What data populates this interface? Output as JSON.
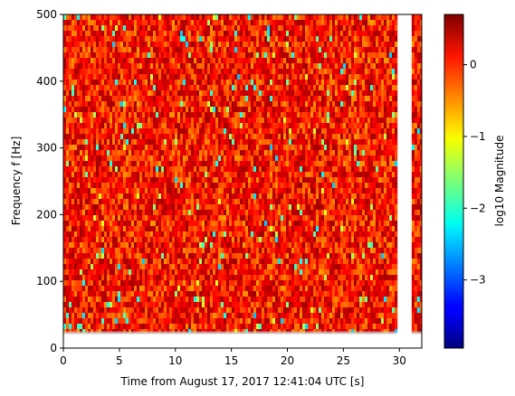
{
  "chart_data": {
    "type": "heatmap",
    "xlabel": "Time from August 17, 2017 12:41:04 UTC [s]",
    "ylabel": "Frequency f [Hz]",
    "xlim": [
      0,
      32
    ],
    "ylim": [
      0,
      500
    ],
    "xticks": [
      "0",
      "5",
      "10",
      "15",
      "20",
      "25",
      "30"
    ],
    "yticks": [
      "0",
      "100",
      "200",
      "300",
      "400",
      "500"
    ],
    "data_freq_min": 23,
    "segments": [
      {
        "t_start": 0,
        "t_end": 29.8
      },
      {
        "t_start": 31.1,
        "t_end": 32
      }
    ],
    "colorbar": {
      "label": "log10 Magnitude",
      "colormap": "jet",
      "range": [
        -3.95,
        0.7
      ],
      "ticks": [
        "0",
        "−1",
        "−2",
        "−3"
      ],
      "tick_values": [
        0,
        -1,
        -2,
        -3
      ]
    },
    "dominant_value_range": [
      -0.6,
      0.55
    ],
    "grid": false
  }
}
